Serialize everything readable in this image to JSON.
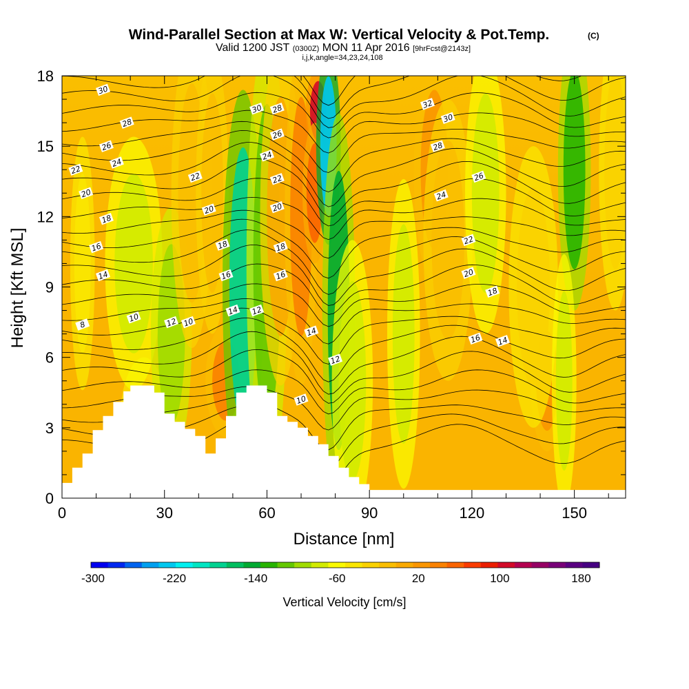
{
  "chart_data": {
    "type": "heatmap",
    "title": "Wind-Parallel Section at Max W: Vertical Velocity & Pot.Temp.",
    "title_units": "(C)",
    "subtitle_parts": [
      "Valid 1200 JST",
      "(0300Z)",
      "MON 11 Apr 2016",
      "[9hrFcst@2143z]"
    ],
    "subtitle2": "i,j,k,angle=34,23,24,108",
    "xlabel": "Distance [nm]",
    "ylabel": "Height [Kft MSL]",
    "xlim": [
      0,
      165
    ],
    "ylim": [
      0,
      18
    ],
    "x_ticks": [
      "0",
      "30",
      "60",
      "90",
      "120",
      "150"
    ],
    "y_ticks": [
      "0",
      "3",
      "6",
      "9",
      "12",
      "15",
      "18"
    ],
    "colorbar": {
      "label": "Vertical Velocity [cm/s]",
      "range": [
        -300,
        200
      ],
      "step": 20,
      "ticks": [
        "-300",
        "-220",
        "-140",
        "-60",
        "20",
        "100",
        "180"
      ],
      "colors": [
        "#0000f0",
        "#0028f0",
        "#0064f0",
        "#00a0f0",
        "#00c8f0",
        "#00f0f0",
        "#00e6c3",
        "#00d291",
        "#00be5f",
        "#00aa32",
        "#28b400",
        "#64c800",
        "#a0dc00",
        "#d2eb00",
        "#fafa00",
        "#fae600",
        "#fad200",
        "#fabe00",
        "#faaa00",
        "#fa9600",
        "#fa8200",
        "#fa6400",
        "#fa3c00",
        "#eb1e00",
        "#d20a28",
        "#b40050",
        "#960064",
        "#780078",
        "#5a0082",
        "#460082"
      ]
    },
    "terrain_profile_kft": [
      [
        0,
        0.65
      ],
      [
        3,
        0.65
      ],
      [
        3,
        1.3
      ],
      [
        6,
        1.3
      ],
      [
        6,
        1.9
      ],
      [
        9,
        1.9
      ],
      [
        9,
        2.9
      ],
      [
        12,
        2.9
      ],
      [
        12,
        3.5
      ],
      [
        15,
        3.5
      ],
      [
        15,
        4.1
      ],
      [
        18,
        4.1
      ],
      [
        18,
        4.55
      ],
      [
        20,
        4.55
      ],
      [
        20,
        4.8
      ],
      [
        27,
        4.8
      ],
      [
        27,
        4.5
      ],
      [
        30,
        4.5
      ],
      [
        30,
        3.6
      ],
      [
        33,
        3.6
      ],
      [
        33,
        3.25
      ],
      [
        36,
        3.25
      ],
      [
        36,
        2.95
      ],
      [
        39,
        2.95
      ],
      [
        39,
        2.65
      ],
      [
        42,
        2.65
      ],
      [
        42,
        1.9
      ],
      [
        45,
        1.9
      ],
      [
        45,
        2.55
      ],
      [
        48,
        2.55
      ],
      [
        48,
        3.5
      ],
      [
        51,
        3.5
      ],
      [
        51,
        4.5
      ],
      [
        54,
        4.5
      ],
      [
        54,
        4.8
      ],
      [
        60,
        4.8
      ],
      [
        60,
        4.5
      ],
      [
        63,
        4.5
      ],
      [
        63,
        3.5
      ],
      [
        66,
        3.5
      ],
      [
        66,
        3.25
      ],
      [
        69,
        3.25
      ],
      [
        69,
        3.0
      ],
      [
        72,
        3.0
      ],
      [
        72,
        2.65
      ],
      [
        75,
        2.65
      ],
      [
        75,
        2.3
      ],
      [
        78,
        2.3
      ],
      [
        78,
        1.8
      ],
      [
        81,
        1.8
      ],
      [
        81,
        1.3
      ],
      [
        84,
        1.3
      ],
      [
        84,
        0.9
      ],
      [
        87,
        0.9
      ],
      [
        87,
        0.6
      ],
      [
        90,
        0.6
      ],
      [
        90,
        0.35
      ],
      [
        165,
        0.35
      ]
    ],
    "w_cells": [
      {
        "x": 6,
        "w": 3,
        "z": 10,
        "h": 9,
        "v": 15
      },
      {
        "x": 24,
        "w": 6,
        "z": 3,
        "h": 5,
        "v": 30
      },
      {
        "x": 21,
        "w": 7,
        "z": 10,
        "h": 9,
        "v": -30
      },
      {
        "x": 32,
        "w": 5,
        "z": 7,
        "h": 9,
        "v": -60
      },
      {
        "x": 38,
        "w": 5,
        "z": 13,
        "h": 11,
        "v": 50
      },
      {
        "x": 48,
        "w": 5,
        "z": 5,
        "h": 4,
        "v": 100
      },
      {
        "x": 44,
        "w": 4,
        "z": 13,
        "h": 10,
        "v": 40
      },
      {
        "x": 53,
        "w": 5,
        "z": 9,
        "h": 14,
        "v": -150
      },
      {
        "x": 60,
        "w": 5,
        "z": 10,
        "h": 16,
        "v": -80
      },
      {
        "x": 64,
        "w": 5,
        "z": 12,
        "h": 12,
        "v": 70
      },
      {
        "x": 70,
        "w": 4,
        "z": 12,
        "h": 12,
        "v": 110
      },
      {
        "x": 75,
        "w": 3,
        "z": 16.5,
        "h": 3,
        "v": 180
      },
      {
        "x": 74,
        "w": 3,
        "z": 13,
        "h": 5,
        "v": 120
      },
      {
        "x": 78,
        "w": 3,
        "z": 15,
        "h": 7,
        "v": -220
      },
      {
        "x": 81,
        "w": 4,
        "z": 8,
        "h": 14,
        "v": -120
      },
      {
        "x": 85,
        "w": 5,
        "z": 5,
        "h": 10,
        "v": -40
      },
      {
        "x": 100,
        "w": 4,
        "z": 7,
        "h": 11,
        "v": -40
      },
      {
        "x": 109,
        "w": 5,
        "z": 14,
        "h": 8,
        "v": 80
      },
      {
        "x": 113,
        "w": 6,
        "z": 11,
        "h": 10,
        "v": 50
      },
      {
        "x": 124,
        "w": 5,
        "z": 13,
        "h": 10,
        "v": -40
      },
      {
        "x": 142,
        "w": 4,
        "z": 5,
        "h": 5,
        "v": 90
      },
      {
        "x": 138,
        "w": 6,
        "z": 9,
        "h": 10,
        "v": 30
      },
      {
        "x": 150,
        "w": 4,
        "z": 14,
        "h": 10,
        "v": -100
      },
      {
        "x": 147,
        "w": 3,
        "z": 5,
        "h": 9,
        "v": -40
      },
      {
        "x": 162,
        "w": 4,
        "z": 14,
        "h": 10,
        "v": 30
      }
    ],
    "theta_labels": [
      {
        "x": 12,
        "z": 17.4,
        "t": "30"
      },
      {
        "x": 19,
        "z": 16.0,
        "t": "28"
      },
      {
        "x": 13,
        "z": 15.0,
        "t": "26"
      },
      {
        "x": 16,
        "z": 14.3,
        "t": "24"
      },
      {
        "x": 4,
        "z": 14.0,
        "t": "22"
      },
      {
        "x": 7,
        "z": 13.0,
        "t": "20"
      },
      {
        "x": 13,
        "z": 11.9,
        "t": "18"
      },
      {
        "x": 10,
        "z": 10.7,
        "t": "16"
      },
      {
        "x": 12,
        "z": 9.5,
        "t": "14"
      },
      {
        "x": 21,
        "z": 7.7,
        "t": "10"
      },
      {
        "x": 6,
        "z": 7.4,
        "t": "8"
      },
      {
        "x": 32,
        "z": 7.5,
        "t": "12"
      },
      {
        "x": 37,
        "z": 7.5,
        "t": "10"
      },
      {
        "x": 39,
        "z": 13.7,
        "t": "22"
      },
      {
        "x": 43,
        "z": 12.3,
        "t": "20"
      },
      {
        "x": 47,
        "z": 10.8,
        "t": "18"
      },
      {
        "x": 48,
        "z": 9.5,
        "t": "16"
      },
      {
        "x": 50,
        "z": 8.0,
        "t": "14"
      },
      {
        "x": 57,
        "z": 8.0,
        "t": "12"
      },
      {
        "x": 57,
        "z": 16.6,
        "t": "30"
      },
      {
        "x": 63,
        "z": 16.6,
        "t": "28"
      },
      {
        "x": 63,
        "z": 15.5,
        "t": "26"
      },
      {
        "x": 60,
        "z": 14.6,
        "t": "24"
      },
      {
        "x": 63,
        "z": 13.6,
        "t": "22"
      },
      {
        "x": 63,
        "z": 12.4,
        "t": "20"
      },
      {
        "x": 64,
        "z": 10.7,
        "t": "18"
      },
      {
        "x": 64,
        "z": 9.5,
        "t": "16"
      },
      {
        "x": 73,
        "z": 7.1,
        "t": "14"
      },
      {
        "x": 80,
        "z": 5.9,
        "t": "12"
      },
      {
        "x": 70,
        "z": 4.2,
        "t": "10"
      },
      {
        "x": 107,
        "z": 16.8,
        "t": "32"
      },
      {
        "x": 113,
        "z": 16.2,
        "t": "30"
      },
      {
        "x": 110,
        "z": 15.0,
        "t": "28"
      },
      {
        "x": 122,
        "z": 13.7,
        "t": "26"
      },
      {
        "x": 111,
        "z": 12.9,
        "t": "24"
      },
      {
        "x": 119,
        "z": 11.0,
        "t": "22"
      },
      {
        "x": 119,
        "z": 9.6,
        "t": "20"
      },
      {
        "x": 126,
        "z": 8.8,
        "t": "18"
      },
      {
        "x": 121,
        "z": 6.8,
        "t": "16"
      },
      {
        "x": 129,
        "z": 6.7,
        "t": "14"
      }
    ]
  }
}
